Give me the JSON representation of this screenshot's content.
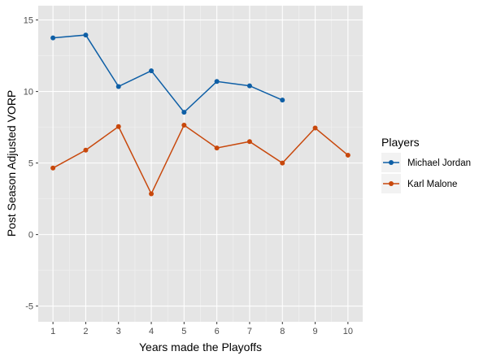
{
  "chart_data": {
    "type": "line",
    "xlabel": "Years made the Playoffs",
    "ylabel": "Post Season Adjusted VORP",
    "x_ticks": [
      "1",
      "2",
      "3",
      "4",
      "5",
      "6",
      "7",
      "8",
      "9",
      "10"
    ],
    "y_ticks": [
      "-5",
      "0",
      "5",
      "10",
      "15"
    ],
    "xlim": [
      0.55,
      10.45
    ],
    "ylim": [
      -6.1,
      16.0
    ],
    "grid": true,
    "panel_background": "#e5e5e5",
    "legend": {
      "title": "Players",
      "position": "right"
    },
    "series": [
      {
        "name": "Michael Jordan",
        "color": "#0e5fa6",
        "x": [
          1,
          2,
          3,
          4,
          5,
          6,
          7,
          8
        ],
        "y": [
          13.75,
          13.95,
          10.35,
          11.45,
          8.55,
          10.7,
          10.4,
          9.4
        ]
      },
      {
        "name": "Karl Malone",
        "color": "#c8480c",
        "x": [
          1,
          2,
          3,
          4,
          5,
          6,
          7,
          8,
          9,
          10
        ],
        "y": [
          4.65,
          5.9,
          7.55,
          2.85,
          7.65,
          6.05,
          6.5,
          5.0,
          7.45,
          5.55
        ]
      }
    ]
  }
}
